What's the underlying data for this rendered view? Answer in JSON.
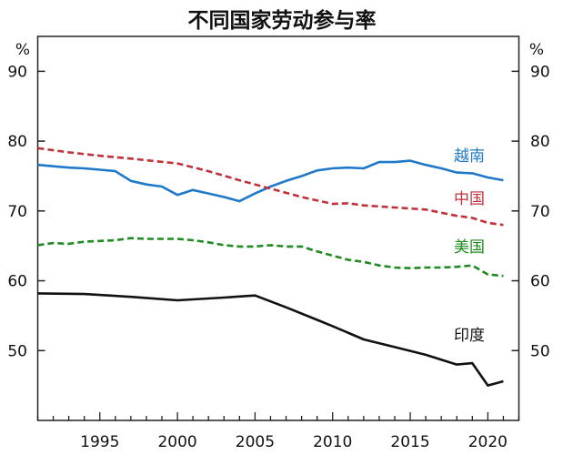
{
  "chart_data": {
    "type": "line",
    "title": "不同国家劳动参与率",
    "y_unit_left": "%",
    "y_unit_right": "%",
    "xlim": [
      1991,
      2022
    ],
    "ylim": [
      40,
      95
    ],
    "x_ticks": [
      1995,
      2000,
      2005,
      2010,
      2015,
      2020
    ],
    "y_ticks": [
      50,
      60,
      70,
      80,
      90
    ],
    "grid": false,
    "legend_placement": "inline-right",
    "series": [
      {
        "name": "越南",
        "color": "#1f78c8",
        "dash": "solid",
        "points": [
          [
            1991,
            76.6
          ],
          [
            1992,
            76.4
          ],
          [
            1993,
            76.2
          ],
          [
            1994,
            76.1
          ],
          [
            1995,
            75.9
          ],
          [
            1996,
            75.7
          ],
          [
            1997,
            74.3
          ],
          [
            1998,
            73.8
          ],
          [
            1999,
            73.5
          ],
          [
            2000,
            72.3
          ],
          [
            2001,
            73.0
          ],
          [
            2002,
            72.5
          ],
          [
            2003,
            72.0
          ],
          [
            2004,
            71.4
          ],
          [
            2005,
            72.5
          ],
          [
            2006,
            73.5
          ],
          [
            2007,
            74.3
          ],
          [
            2008,
            75.0
          ],
          [
            2009,
            75.8
          ],
          [
            2010,
            76.1
          ],
          [
            2011,
            76.2
          ],
          [
            2012,
            76.1
          ],
          [
            2013,
            77.0
          ],
          [
            2014,
            77.0
          ],
          [
            2015,
            77.2
          ],
          [
            2016,
            76.6
          ],
          [
            2017,
            76.1
          ],
          [
            2018,
            75.5
          ],
          [
            2019,
            75.4
          ],
          [
            2020,
            74.8
          ],
          [
            2021,
            74.4
          ]
        ]
      },
      {
        "name": "中国",
        "color": "#c0313a",
        "dash": "dashed",
        "points": [
          [
            1991,
            79.0
          ],
          [
            1993,
            78.4
          ],
          [
            1995,
            77.9
          ],
          [
            1997,
            77.5
          ],
          [
            2000,
            76.8
          ],
          [
            2002,
            75.7
          ],
          [
            2004,
            74.4
          ],
          [
            2006,
            73.2
          ],
          [
            2008,
            72.0
          ],
          [
            2010,
            71.0
          ],
          [
            2011,
            71.1
          ],
          [
            2012,
            70.8
          ],
          [
            2014,
            70.5
          ],
          [
            2016,
            70.2
          ],
          [
            2018,
            69.3
          ],
          [
            2019,
            69.0
          ],
          [
            2020,
            68.3
          ],
          [
            2021,
            68.0
          ]
        ]
      },
      {
        "name": "美国",
        "color": "#1f8a1f",
        "dash": "dashed",
        "points": [
          [
            1991,
            65.1
          ],
          [
            1992,
            65.4
          ],
          [
            1993,
            65.3
          ],
          [
            1994,
            65.6
          ],
          [
            1995,
            65.7
          ],
          [
            1996,
            65.8
          ],
          [
            1997,
            66.1
          ],
          [
            1998,
            66.0
          ],
          [
            1999,
            66.0
          ],
          [
            2000,
            66.0
          ],
          [
            2001,
            65.8
          ],
          [
            2002,
            65.5
          ],
          [
            2003,
            65.1
          ],
          [
            2004,
            64.9
          ],
          [
            2005,
            64.9
          ],
          [
            2006,
            65.1
          ],
          [
            2007,
            64.9
          ],
          [
            2008,
            64.9
          ],
          [
            2009,
            64.2
          ],
          [
            2010,
            63.6
          ],
          [
            2011,
            63.0
          ],
          [
            2012,
            62.7
          ],
          [
            2013,
            62.2
          ],
          [
            2014,
            61.9
          ],
          [
            2015,
            61.8
          ],
          [
            2016,
            61.9
          ],
          [
            2017,
            61.9
          ],
          [
            2018,
            62.0
          ],
          [
            2019,
            62.2
          ],
          [
            2020,
            60.9
          ],
          [
            2021,
            60.7
          ]
        ]
      },
      {
        "name": "印度",
        "color": "#111111",
        "dash": "solid",
        "points": [
          [
            1991,
            58.2
          ],
          [
            1994,
            58.1
          ],
          [
            1997,
            57.7
          ],
          [
            2000,
            57.2
          ],
          [
            2003,
            57.6
          ],
          [
            2005,
            57.9
          ],
          [
            2007,
            56.2
          ],
          [
            2009,
            54.4
          ],
          [
            2010,
            53.5
          ],
          [
            2012,
            51.6
          ],
          [
            2014,
            50.5
          ],
          [
            2016,
            49.4
          ],
          [
            2018,
            48.0
          ],
          [
            2019,
            48.2
          ],
          [
            2020,
            45.0
          ],
          [
            2021,
            45.6
          ]
        ]
      }
    ]
  }
}
